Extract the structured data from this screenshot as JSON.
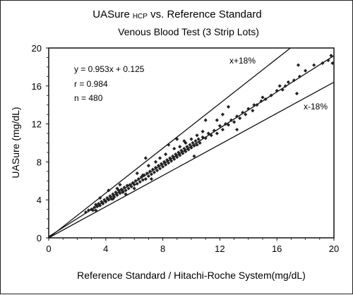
{
  "chart_data": {
    "type": "scatter",
    "title_main": "UASure",
    "title_sub": "HCP",
    "title_rest": " vs. Reference Standard",
    "subtitle": "Venous Blood Test (3 Strip Lots)",
    "xlabel": "Reference Standard / Hitachi-Roche System(mg/dL)",
    "ylabel": "UASure (mg/dL)",
    "xlim": [
      0,
      20
    ],
    "ylim": [
      0,
      20
    ],
    "x_ticks": [
      "0",
      "4",
      "8",
      "12",
      "16",
      "20"
    ],
    "y_ticks": [
      "0",
      "4",
      "8",
      "12",
      "16",
      "20"
    ],
    "grid": false,
    "stats": {
      "equation": "y = 0.953x + 0.125",
      "r": "r  = 0.984",
      "n": "n = 480"
    },
    "lines": [
      {
        "label": "x+18%",
        "slope": 1.18,
        "intercept": 0
      },
      {
        "label": "regression",
        "slope": 0.953,
        "intercept": 0.125
      },
      {
        "label": "x-18%",
        "slope": 0.82,
        "intercept": 0
      }
    ],
    "points": [
      [
        2.6,
        2.7
      ],
      [
        2.8,
        2.9
      ],
      [
        3.0,
        3.0
      ],
      [
        3.1,
        2.9
      ],
      [
        3.2,
        3.2
      ],
      [
        3.3,
        3.5
      ],
      [
        3.4,
        3.3
      ],
      [
        3.5,
        3.6
      ],
      [
        3.6,
        3.4
      ],
      [
        3.7,
        3.8
      ],
      [
        3.8,
        3.6
      ],
      [
        3.9,
        4.0
      ],
      [
        4.0,
        3.8
      ],
      [
        4.1,
        4.2
      ],
      [
        4.2,
        4.0
      ],
      [
        4.3,
        4.4
      ],
      [
        4.4,
        4.1
      ],
      [
        4.5,
        4.6
      ],
      [
        4.6,
        4.3
      ],
      [
        4.7,
        4.8
      ],
      [
        4.8,
        4.5
      ],
      [
        4.9,
        5.0
      ],
      [
        5.0,
        4.7
      ],
      [
        5.1,
        5.1
      ],
      [
        5.2,
        4.9
      ],
      [
        5.3,
        5.3
      ],
      [
        5.4,
        5.0
      ],
      [
        5.5,
        5.5
      ],
      [
        5.6,
        5.2
      ],
      [
        5.7,
        5.6
      ],
      [
        5.8,
        5.4
      ],
      [
        5.9,
        5.8
      ],
      [
        6.0,
        5.6
      ],
      [
        6.1,
        6.0
      ],
      [
        6.2,
        5.7
      ],
      [
        6.3,
        6.2
      ],
      [
        6.4,
        5.9
      ],
      [
        6.5,
        6.4
      ],
      [
        6.6,
        6.1
      ],
      [
        6.7,
        6.6
      ],
      [
        6.8,
        6.2
      ],
      [
        6.9,
        6.8
      ],
      [
        7.0,
        6.5
      ],
      [
        7.1,
        7.0
      ],
      [
        7.2,
        6.7
      ],
      [
        7.3,
        7.2
      ],
      [
        7.4,
        6.9
      ],
      [
        7.5,
        7.4
      ],
      [
        7.6,
        7.1
      ],
      [
        7.7,
        7.6
      ],
      [
        7.8,
        7.3
      ],
      [
        7.9,
        7.8
      ],
      [
        8.0,
        7.5
      ],
      [
        8.1,
        8.0
      ],
      [
        8.2,
        7.7
      ],
      [
        8.3,
        8.2
      ],
      [
        8.4,
        7.9
      ],
      [
        8.5,
        8.4
      ],
      [
        8.6,
        8.1
      ],
      [
        8.7,
        8.6
      ],
      [
        8.8,
        8.3
      ],
      [
        8.9,
        8.8
      ],
      [
        9.0,
        8.5
      ],
      [
        9.1,
        9.0
      ],
      [
        9.2,
        8.7
      ],
      [
        9.3,
        9.2
      ],
      [
        9.4,
        8.9
      ],
      [
        9.5,
        9.4
      ],
      [
        9.6,
        9.1
      ],
      [
        9.7,
        9.6
      ],
      [
        9.8,
        9.3
      ],
      [
        9.9,
        9.8
      ],
      [
        10.0,
        9.5
      ],
      [
        10.1,
        10.0
      ],
      [
        10.2,
        9.7
      ],
      [
        10.3,
        10.2
      ],
      [
        10.4,
        9.8
      ],
      [
        10.5,
        10.4
      ],
      [
        10.6,
        10.0
      ],
      [
        10.8,
        10.6
      ],
      [
        11.0,
        10.5
      ],
      [
        11.2,
        11.0
      ],
      [
        11.4,
        10.8
      ],
      [
        11.6,
        11.3
      ],
      [
        11.8,
        11.0
      ],
      [
        12.0,
        11.8
      ],
      [
        12.2,
        11.4
      ],
      [
        12.4,
        12.0
      ],
      [
        12.6,
        11.9
      ],
      [
        12.8,
        12.4
      ],
      [
        13.0,
        12.2
      ],
      [
        13.2,
        12.8
      ],
      [
        13.4,
        12.6
      ],
      [
        13.6,
        13.2
      ],
      [
        13.8,
        13.0
      ],
      [
        14.0,
        13.6
      ],
      [
        14.3,
        13.4
      ],
      [
        14.6,
        14.0
      ],
      [
        14.9,
        14.4
      ],
      [
        15.2,
        14.6
      ],
      [
        15.6,
        15.0
      ],
      [
        16.0,
        15.5
      ],
      [
        16.4,
        15.6
      ],
      [
        16.8,
        16.4
      ],
      [
        17.2,
        16.6
      ],
      [
        17.6,
        17.0
      ],
      [
        18.0,
        17.6
      ],
      [
        18.6,
        18.2
      ],
      [
        19.2,
        18.4
      ],
      [
        19.6,
        18.7
      ],
      [
        17.5,
        18.2
      ],
      [
        17.4,
        15.2
      ],
      [
        19.8,
        19.2
      ],
      [
        19.9,
        18.4
      ],
      [
        6.8,
        8.4
      ],
      [
        4.2,
        5.0
      ],
      [
        9.0,
        10.4
      ],
      [
        11.0,
        12.4
      ],
      [
        12.6,
        13.8
      ],
      [
        8.4,
        9.8
      ],
      [
        5.4,
        4.6
      ],
      [
        7.2,
        6.2
      ],
      [
        10.2,
        8.6
      ],
      [
        13.2,
        11.4
      ],
      [
        3.3,
        2.9
      ],
      [
        3.6,
        4.2
      ],
      [
        5.0,
        5.6
      ],
      [
        6.2,
        6.8
      ],
      [
        7.5,
        8.0
      ],
      [
        9.5,
        10.2
      ],
      [
        10.8,
        11.2
      ],
      [
        11.8,
        12.4
      ],
      [
        12.2,
        13.0
      ],
      [
        14.4,
        14.0
      ],
      [
        15.0,
        14.8
      ],
      [
        16.2,
        16.0
      ],
      [
        16.6,
        16.0
      ],
      [
        5.2,
        4.8
      ],
      [
        6.0,
        5.2
      ],
      [
        6.6,
        6.6
      ],
      [
        7.0,
        7.6
      ],
      [
        7.8,
        8.4
      ],
      [
        8.2,
        8.8
      ],
      [
        8.8,
        9.4
      ],
      [
        9.2,
        9.6
      ],
      [
        9.6,
        10.0
      ],
      [
        10.0,
        10.4
      ],
      [
        10.4,
        10.8
      ],
      [
        4.5,
        4.1
      ],
      [
        4.8,
        5.2
      ]
    ]
  }
}
